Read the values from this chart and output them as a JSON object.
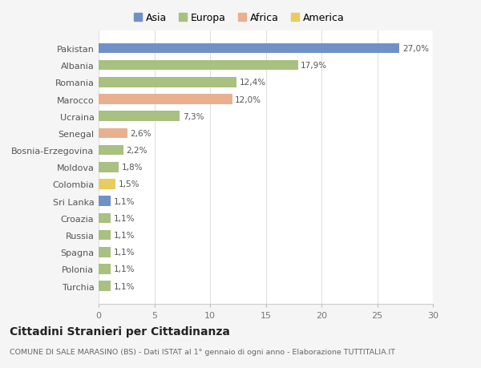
{
  "countries": [
    "Pakistan",
    "Albania",
    "Romania",
    "Marocco",
    "Ucraina",
    "Senegal",
    "Bosnia-Erzegovina",
    "Moldova",
    "Colombia",
    "Sri Lanka",
    "Croazia",
    "Russia",
    "Spagna",
    "Polonia",
    "Turchia"
  ],
  "values": [
    27.0,
    17.9,
    12.4,
    12.0,
    7.3,
    2.6,
    2.2,
    1.8,
    1.5,
    1.1,
    1.1,
    1.1,
    1.1,
    1.1,
    1.1
  ],
  "labels": [
    "27,0%",
    "17,9%",
    "12,4%",
    "12,0%",
    "7,3%",
    "2,6%",
    "2,2%",
    "1,8%",
    "1,5%",
    "1,1%",
    "1,1%",
    "1,1%",
    "1,1%",
    "1,1%",
    "1,1%"
  ],
  "continents": [
    "Asia",
    "Europa",
    "Europa",
    "Africa",
    "Europa",
    "Africa",
    "Europa",
    "Europa",
    "America",
    "Asia",
    "Europa",
    "Europa",
    "Europa",
    "Europa",
    "Europa"
  ],
  "colors": {
    "Asia": "#7090c8",
    "Europa": "#a8c080",
    "Africa": "#e8b090",
    "America": "#e8cc60"
  },
  "legend_order": [
    "Asia",
    "Europa",
    "Africa",
    "America"
  ],
  "title": "Cittadini Stranieri per Cittadinanza",
  "subtitle": "COMUNE DI SALE MARASINO (BS) - Dati ISTAT al 1° gennaio di ogni anno - Elaborazione TUTTITALIA.IT",
  "xlim": [
    0,
    30
  ],
  "xticks": [
    0,
    5,
    10,
    15,
    20,
    25,
    30
  ],
  "bg_color": "#f5f5f5",
  "plot_bg_color": "#ffffff",
  "grid_color": "#e0e0e0",
  "bar_height": 0.6
}
